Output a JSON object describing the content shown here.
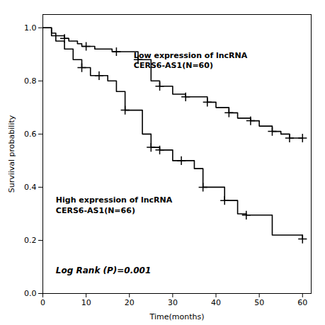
{
  "chart_data": {
    "type": "step",
    "xlabel": "Time(months)",
    "ylabel": "Surviival probability",
    "xlim": [
      0,
      62
    ],
    "ylim": [
      0.0,
      1.05
    ],
    "xticks": [
      0,
      10,
      20,
      30,
      40,
      50,
      60
    ],
    "yticks": [
      {
        "value": 0.0,
        "label": "0.0"
      },
      0.2,
      0.4,
      0.6,
      0.8,
      {
        "value": 1.0,
        "label": "1.0"
      }
    ],
    "grid": false,
    "background_color": "#ffffff",
    "series": [
      {
        "color": "#000000",
        "marker": "plus",
        "x": [
          0,
          2,
          3,
          4,
          5,
          6,
          7,
          8,
          9,
          10,
          12,
          14,
          16,
          17,
          20,
          22,
          25,
          27,
          30,
          33,
          35,
          38,
          40,
          43,
          45,
          48,
          50,
          53,
          55,
          57,
          60
        ],
        "values": [
          1.0,
          0.98,
          0.97,
          0.97,
          0.96,
          0.95,
          0.95,
          0.94,
          0.93,
          0.93,
          0.92,
          0.92,
          0.91,
          0.91,
          0.91,
          0.88,
          0.8,
          0.78,
          0.75,
          0.74,
          0.74,
          0.72,
          0.7,
          0.68,
          0.66,
          0.65,
          0.63,
          0.61,
          0.6,
          0.585,
          0.585
        ],
        "censor_x": [
          5,
          10,
          17,
          22,
          27,
          33,
          38,
          43,
          48,
          53,
          57,
          60
        ],
        "censor_values": [
          0.96,
          0.93,
          0.91,
          0.88,
          0.78,
          0.74,
          0.72,
          0.68,
          0.65,
          0.61,
          0.585,
          0.585
        ]
      },
      {
        "color": "#000000",
        "marker": "plus",
        "x": [
          0,
          2,
          3,
          5,
          7,
          9,
          11,
          13,
          15,
          17,
          19,
          21,
          23,
          25,
          27,
          30,
          32,
          35,
          37,
          40,
          42,
          45,
          47,
          50,
          53,
          57,
          60
        ],
        "values": [
          1.0,
          0.97,
          0.95,
          0.92,
          0.88,
          0.85,
          0.82,
          0.82,
          0.8,
          0.76,
          0.69,
          0.69,
          0.6,
          0.55,
          0.54,
          0.5,
          0.5,
          0.47,
          0.4,
          0.4,
          0.35,
          0.3,
          0.295,
          0.295,
          0.22,
          0.22,
          0.205
        ],
        "censor_x": [
          9,
          13,
          19,
          25,
          27,
          32,
          37,
          42,
          47,
          60
        ],
        "censor_values": [
          0.85,
          0.82,
          0.69,
          0.55,
          0.54,
          0.5,
          0.4,
          0.35,
          0.295,
          0.205
        ]
      }
    ],
    "annotations": [
      {
        "text": "Low expression of lncRNA\nCERS6-AS1(N=60)",
        "x": 21,
        "y": 0.88
      },
      {
        "text": "High expression of lncRNA\nCERS6-AS1(N=66)",
        "x": 3,
        "y": 0.335
      },
      {
        "text": "Log Rank (P)=0.001",
        "x": 3,
        "y": 0.09
      }
    ]
  }
}
